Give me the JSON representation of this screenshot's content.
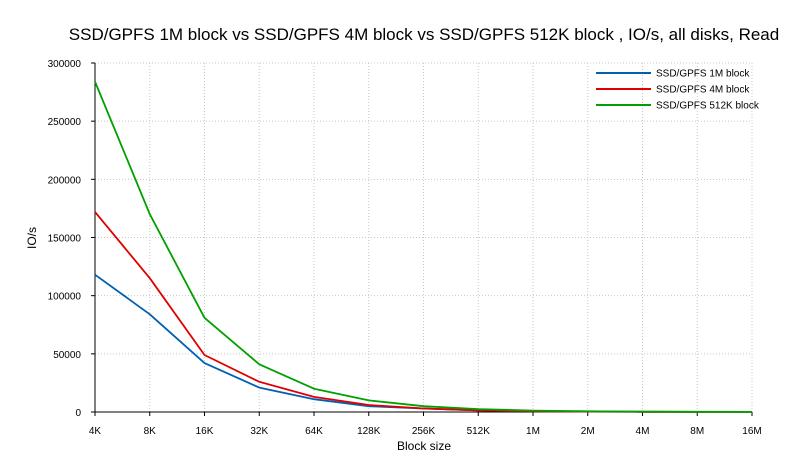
{
  "chart_data": {
    "type": "line",
    "title": "SSD/GPFS 1M block vs SSD/GPFS 4M block vs SSD/GPFS 512K block , IO/s, all disks, Read",
    "xlabel": "Block size",
    "ylabel": "IO/s",
    "categories": [
      "4K",
      "8K",
      "16K",
      "32K",
      "64K",
      "128K",
      "256K",
      "512K",
      "1M",
      "2M",
      "4M",
      "8M",
      "16M"
    ],
    "ylim": [
      0,
      300000
    ],
    "yticks": [
      "0",
      "50000",
      "100000",
      "150000",
      "200000",
      "250000",
      "300000"
    ],
    "grid": true,
    "legend_position": "top-right",
    "series": [
      {
        "name": "SSD/GPFS 1M block",
        "color": "#0060b0",
        "values": [
          118000,
          84000,
          42000,
          21000,
          11000,
          5000,
          3000,
          1500,
          700,
          350,
          180,
          90,
          45
        ]
      },
      {
        "name": "SSD/GPFS 4M block",
        "color": "#e00000",
        "values": [
          172000,
          115000,
          49000,
          26000,
          13000,
          6000,
          3000,
          1500,
          700,
          350,
          180,
          90,
          45
        ]
      },
      {
        "name": "SSD/GPFS 512K block",
        "color": "#00a000",
        "values": [
          284000,
          170000,
          81000,
          41000,
          20000,
          10000,
          5000,
          2500,
          1200,
          600,
          300,
          150,
          75
        ]
      }
    ]
  }
}
